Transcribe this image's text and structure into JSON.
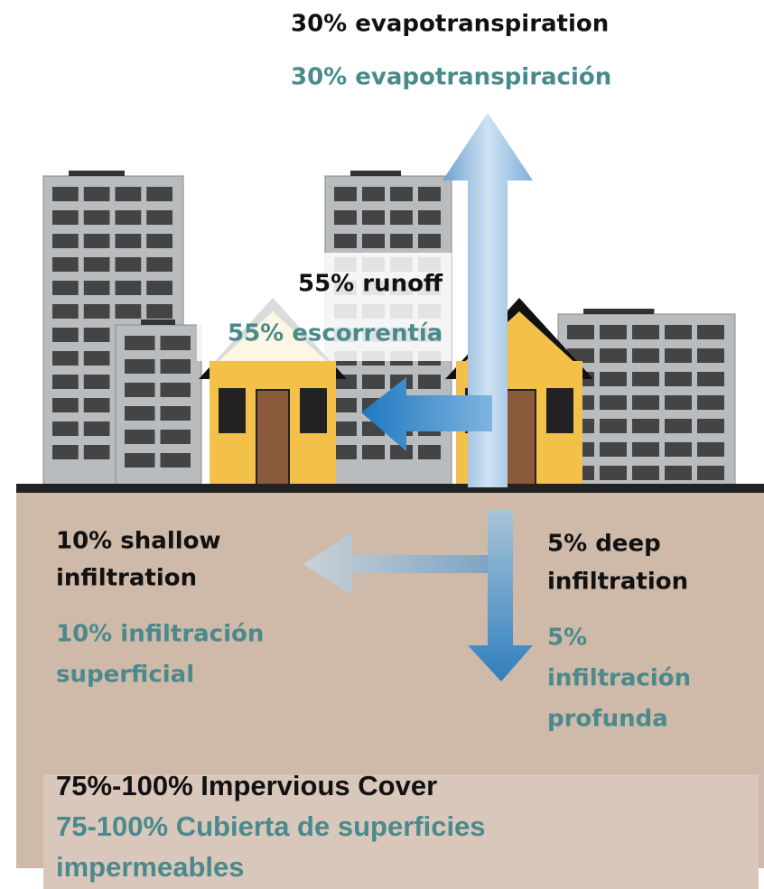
{
  "evapotranspiration": {
    "en": "30% evapotranspiration",
    "es": "30% evapotranspiración"
  },
  "runoff": {
    "en": "55% runoff",
    "es": "55% escorrentía"
  },
  "shallow_infiltration": {
    "en": [
      "10% shallow",
      "infiltration"
    ],
    "es": [
      "10% infiltración",
      "superficial"
    ]
  },
  "deep_infiltration": {
    "en": [
      "5% deep",
      "infiltration"
    ],
    "es": [
      "5%",
      "infiltración",
      "profunda"
    ]
  },
  "cover": {
    "en": "75%-100% Impervious Cover",
    "es": [
      "75-100% Cubierta de superficies",
      "impermeables"
    ]
  }
}
